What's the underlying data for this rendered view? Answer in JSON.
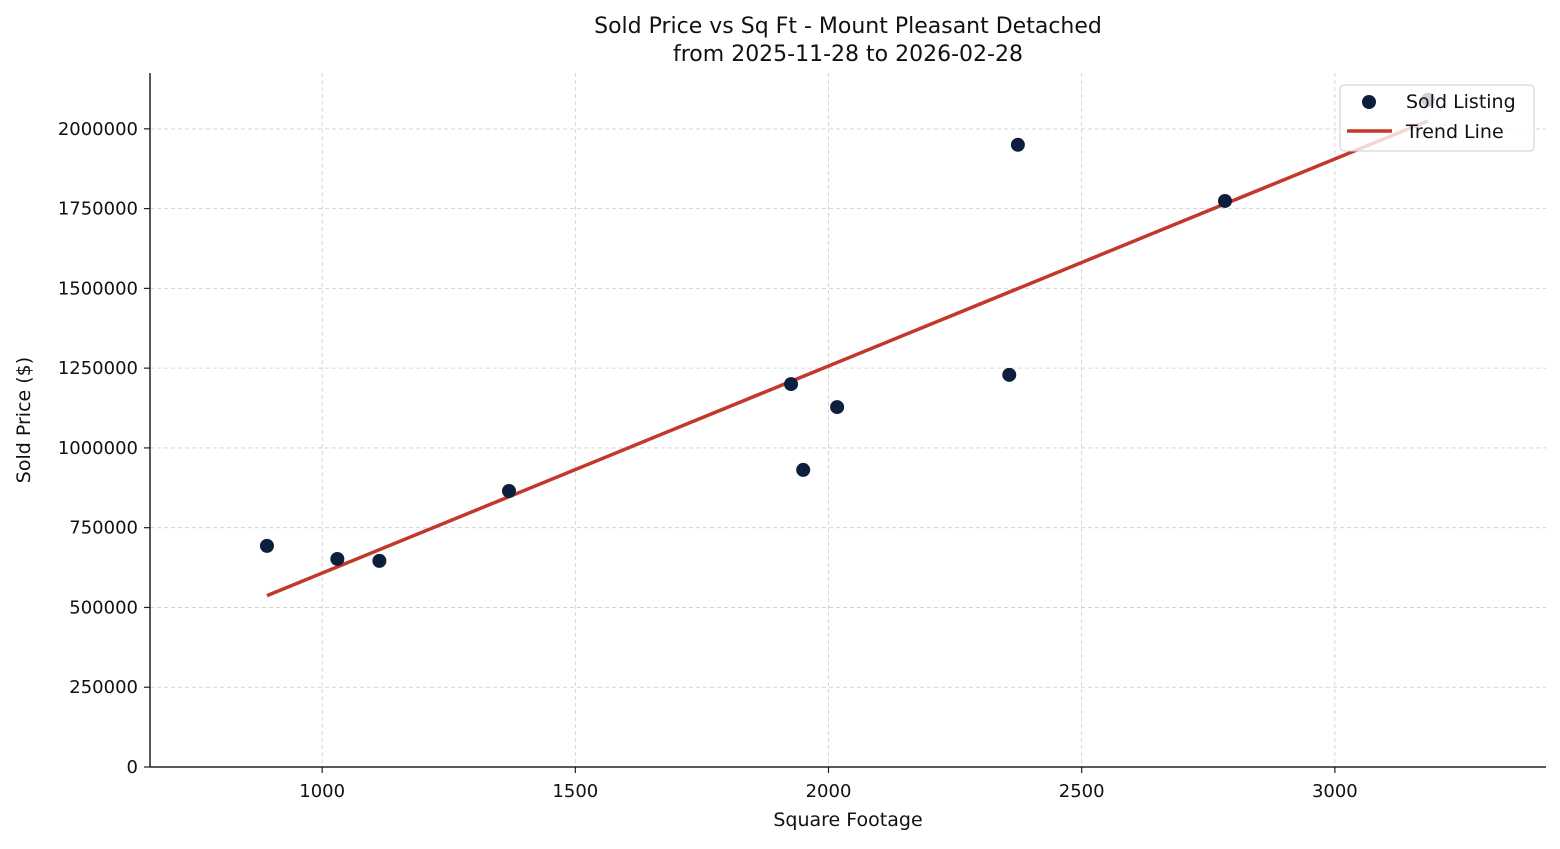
{
  "chart_data": {
    "type": "scatter",
    "title": "Sold Price vs Sq Ft - Mount Pleasant Detached",
    "subtitle": "from 2025-11-28 to 2026-02-28",
    "xlabel": "Square Footage",
    "ylabel": "Sold Price ($)",
    "xlim": [
      660,
      3417
    ],
    "ylim": [
      0,
      2175000
    ],
    "xticks": [
      1000,
      1500,
      2000,
      2500,
      3000
    ],
    "yticks": [
      0,
      250000,
      500000,
      750000,
      1000000,
      1250000,
      1500000,
      1750000,
      2000000
    ],
    "grid": true,
    "legend_position": "top-right",
    "series": [
      {
        "name": "Sold Listing",
        "kind": "scatter",
        "color": "#0d1f3c",
        "x": [
          891,
          1030,
          1113,
          1369,
          1926,
          1950,
          2017,
          2357,
          2374,
          2783,
          3184
        ],
        "y": [
          693000,
          652000,
          646000,
          865000,
          1200000,
          931000,
          1128000,
          1229000,
          1950000,
          1774000,
          2091000
        ]
      },
      {
        "name": "Trend Line",
        "kind": "line",
        "color": "#c0392b",
        "x": [
          891,
          3184
        ],
        "y": [
          537000,
          2025000
        ]
      }
    ]
  }
}
